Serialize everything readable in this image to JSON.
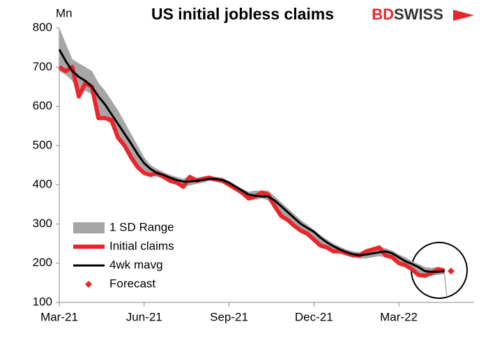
{
  "chart_data": {
    "type": "line",
    "title": "US initial jobless claims",
    "y_label": "Mn",
    "logo": [
      "BD",
      "SWISS"
    ],
    "categories": [
      "Mar-21",
      null,
      null,
      null,
      null,
      null,
      null,
      null,
      null,
      null,
      null,
      null,
      null,
      "Jun-21",
      null,
      null,
      null,
      null,
      null,
      null,
      null,
      null,
      null,
      null,
      null,
      null,
      "Sep-21",
      null,
      null,
      null,
      null,
      null,
      null,
      null,
      null,
      null,
      null,
      null,
      null,
      "Dec-21",
      null,
      null,
      null,
      null,
      null,
      null,
      null,
      null,
      null,
      null,
      null,
      null,
      "Mar-22",
      null,
      null,
      null,
      null,
      null,
      null,
      null,
      null
    ],
    "ylim": [
      100,
      800
    ],
    "yticks": [
      100,
      200,
      300,
      400,
      500,
      600,
      700,
      800
    ],
    "legend": "lower-left",
    "series": [
      {
        "name": "1 SD Range",
        "type": "band",
        "color": "#a6a6a6",
        "high": [
          800,
          760,
          720,
          710,
          700,
          690,
          660,
          640,
          615,
          590,
          560,
          530,
          500,
          470,
          450,
          440,
          432,
          425,
          420,
          415,
          425,
          418,
          420,
          420,
          420,
          418,
          410,
          400,
          390,
          382,
          385,
          385,
          385,
          370,
          355,
          340,
          325,
          310,
          298,
          285,
          272,
          260,
          250,
          242,
          235,
          230,
          228,
          235,
          240,
          242,
          238,
          232,
          222,
          215,
          205,
          198,
          190,
          188,
          190,
          188
        ],
        "low": [
          690,
          680,
          665,
          630,
          640,
          630,
          575,
          565,
          555,
          520,
          495,
          470,
          445,
          430,
          425,
          420,
          415,
          405,
          400,
          395,
          398,
          402,
          405,
          410,
          408,
          404,
          395,
          385,
          375,
          360,
          362,
          365,
          360,
          340,
          318,
          308,
          293,
          280,
          272,
          258,
          243,
          238,
          230,
          228,
          222,
          215,
          212,
          212,
          215,
          218,
          215,
          210,
          195,
          192,
          185,
          170,
          166,
          168,
          170,
          172
        ]
      },
      {
        "name": "Initial claims",
        "type": "line",
        "color": "#e8262b",
        "width": 6,
        "values": [
          700,
          690,
          700,
          625,
          660,
          650,
          570,
          570,
          565,
          520,
          500,
          470,
          445,
          430,
          425,
          430,
          420,
          410,
          405,
          395,
          420,
          410,
          415,
          418,
          413,
          410,
          400,
          390,
          380,
          365,
          370,
          380,
          375,
          345,
          320,
          310,
          295,
          283,
          275,
          260,
          245,
          240,
          230,
          230,
          225,
          220,
          220,
          230,
          235,
          240,
          220,
          215,
          200,
          195,
          185,
          170,
          168,
          175,
          185,
          180,
          null
        ]
      },
      {
        "name": "4wk mavg",
        "type": "line",
        "color": "#000000",
        "width": 3,
        "values": [
          745,
          715,
          690,
          675,
          665,
          650,
          625,
          605,
          580,
          555,
          530,
          505,
          478,
          455,
          440,
          430,
          425,
          418,
          412,
          408,
          408,
          410,
          412,
          415,
          415,
          412,
          405,
          395,
          385,
          375,
          372,
          370,
          370,
          360,
          345,
          330,
          315,
          300,
          290,
          280,
          265,
          253,
          243,
          235,
          228,
          223,
          220,
          222,
          225,
          228,
          230,
          225,
          215,
          205,
          198,
          190,
          180,
          178,
          178,
          180,
          null
        ]
      },
      {
        "name": "Forecast",
        "type": "marker",
        "color": "#e8262b",
        "values": [
          null,
          null,
          null,
          null,
          null,
          null,
          null,
          null,
          null,
          null,
          null,
          null,
          null,
          null,
          null,
          null,
          null,
          null,
          null,
          null,
          null,
          null,
          null,
          null,
          null,
          null,
          null,
          null,
          null,
          null,
          null,
          null,
          null,
          null,
          null,
          null,
          null,
          null,
          null,
          null,
          null,
          null,
          null,
          null,
          null,
          null,
          null,
          null,
          null,
          null,
          null,
          null,
          null,
          null,
          null,
          null,
          null,
          null,
          null,
          null,
          180
        ]
      }
    ]
  }
}
